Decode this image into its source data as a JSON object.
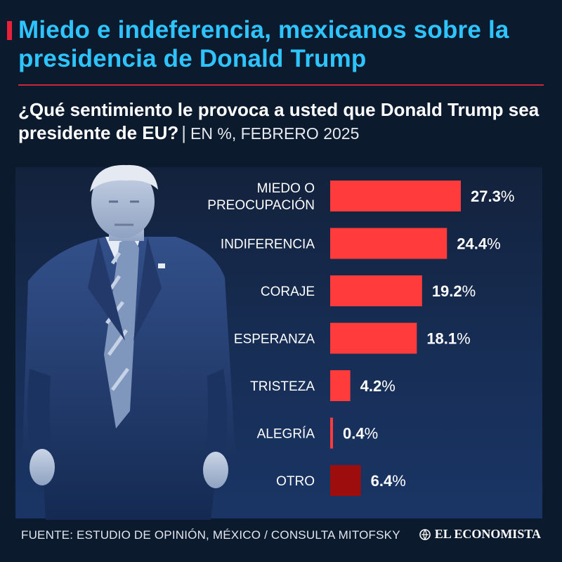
{
  "header": {
    "title": "Miedo e indeferencia, mexicanos sobre la presidencia de Donald Trump",
    "question": "¿Qué sentimiento le provoca a usted que Donald Trump sea presidente de EU?",
    "separator": "|",
    "unit_note": "EN %, FEBRERO 2025"
  },
  "footer": {
    "source": "FUENTE: ESTUDIO DE OPINIÓN, MÉXICO / CONSULTA MITOFSKY",
    "brand": "EL ECONOMISTA"
  },
  "colors": {
    "title": "#2ec4ff",
    "bar": "#ff3b3b",
    "bar_other": "#9e0d0d",
    "background": "#0c1a2e"
  },
  "chart_data": {
    "type": "bar",
    "orientation": "horizontal",
    "title": "¿Qué sentimiento le provoca a usted que Donald Trump sea presidente de EU?",
    "xlabel": "",
    "ylabel": "",
    "unit": "%",
    "xlim": [
      0,
      30
    ],
    "grid": false,
    "categories": [
      [
        "MIEDO O",
        "PREOCUPACIÓN"
      ],
      [
        "INDIFERENCIA"
      ],
      [
        "CORAJE"
      ],
      [
        "ESPERANZA"
      ],
      [
        "TRISTEZA"
      ],
      [
        "ALEGRÍA"
      ],
      [
        "OTRO"
      ]
    ],
    "values": [
      27.3,
      24.4,
      19.2,
      18.1,
      4.2,
      0.4,
      6.4
    ],
    "value_labels": [
      "27.3",
      "24.4",
      "19.2",
      "18.1",
      "4.2",
      "0.4",
      "6.4"
    ],
    "percent_sign": "%",
    "highlight": [
      false,
      false,
      false,
      false,
      false,
      false,
      true
    ]
  }
}
